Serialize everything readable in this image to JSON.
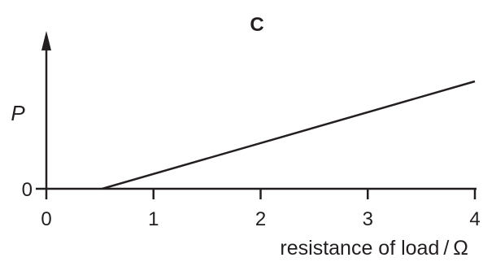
{
  "chart_data": {
    "type": "line",
    "title": "C",
    "xlabel": "resistance of load / Ω",
    "ylabel": "P",
    "xlim": [
      0,
      4
    ],
    "y_tick_labels": [
      "0"
    ],
    "x_tick_labels": [
      "0",
      "1",
      "2",
      "3",
      "4"
    ],
    "x_ticks": [
      0,
      1,
      2,
      3,
      4
    ],
    "series": [
      {
        "x": [
          0.52,
          4
        ],
        "y": [
          0,
          1
        ]
      }
    ],
    "grid": false,
    "legend": "none",
    "line_color": "#231f20"
  }
}
